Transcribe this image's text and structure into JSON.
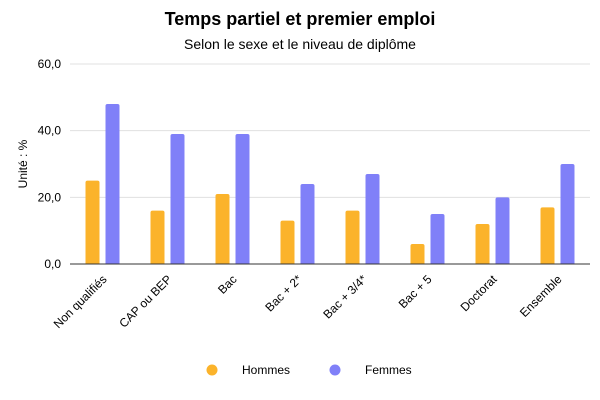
{
  "chart_data": {
    "type": "bar",
    "title": "Temps partiel et premier emploi",
    "subtitle": "Selon le sexe et le niveau de diplôme",
    "ylabel": "Unité : %",
    "xlabel": "",
    "ylim": [
      0,
      60
    ],
    "yticks": [
      "0,0",
      "20,0",
      "40,0",
      "60,0"
    ],
    "ytick_values": [
      0,
      20,
      40,
      60
    ],
    "grid": true,
    "legend_position": "bottom",
    "categories": [
      "Non qualifiés",
      "CAP ou BEP",
      "Bac",
      "Bac + 2*",
      "Bac + 3/4*",
      "Bac + 5",
      "Doctorat",
      "Ensemble"
    ],
    "series": [
      {
        "name": "Hommes",
        "color": "#FBB32B",
        "values": [
          25,
          16,
          21,
          13,
          16,
          6,
          12,
          17
        ]
      },
      {
        "name": "Femmes",
        "color": "#8080F8",
        "values": [
          48,
          39,
          39,
          24,
          27,
          15,
          20,
          30
        ]
      }
    ]
  }
}
